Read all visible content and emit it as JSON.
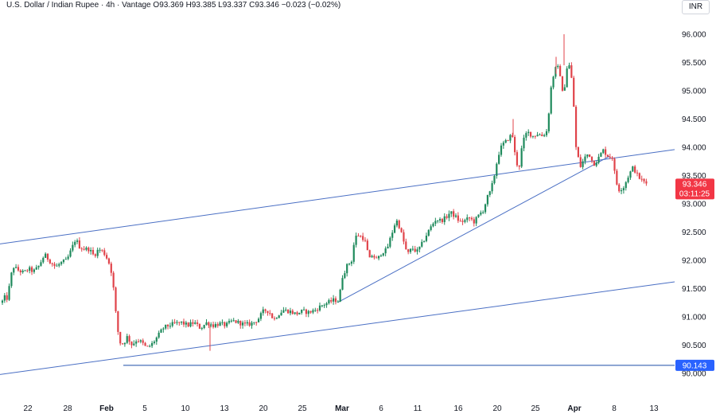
{
  "header": {
    "symbol": "U.S. Dollar / Indian Rupee",
    "interval": "4h",
    "source": "Vantage",
    "open_label": "O",
    "open": "93.369",
    "high_label": "H",
    "high": "93.385",
    "low_label": "L",
    "low": "93.337",
    "close_label": "C",
    "close": "93.346",
    "change": "−0.023 (−0.02%)",
    "separator": "·"
  },
  "currency_button": "INR",
  "colors": {
    "up": "#26a69a",
    "down": "#ef5350",
    "candle_body_up": "#1f8a5c",
    "candle_body_down": "#e0434a",
    "trendline": "#4a6fc4",
    "support_line": "#1c4ea8",
    "current_price_bg": "#f23645",
    "support_label_bg": "#2962ff",
    "text": "#131722"
  },
  "price_labels": {
    "current_price": "93.346",
    "countdown": "03:11:25",
    "support_price": "90.143"
  },
  "chart_data": {
    "type": "candlestick",
    "title": "U.S. Dollar / Indian Rupee · 4h · Vantage",
    "yaxis": {
      "ticks": [
        "96.000",
        "95.500",
        "95.000",
        "94.500",
        "94.000",
        "93.500",
        "93.000",
        "92.500",
        "92.000",
        "91.500",
        "91.000",
        "90.500",
        "90.000"
      ],
      "ylim": [
        89.95,
        96.3
      ]
    },
    "xaxis": {
      "ticks": [
        {
          "label": "22",
          "bold": false
        },
        {
          "label": "28",
          "bold": false
        },
        {
          "label": "Feb",
          "bold": true
        },
        {
          "label": "5",
          "bold": false
        },
        {
          "label": "10",
          "bold": false
        },
        {
          "label": "13",
          "bold": false
        },
        {
          "label": "20",
          "bold": false
        },
        {
          "label": "25",
          "bold": false
        },
        {
          "label": "Mar",
          "bold": true
        },
        {
          "label": "6",
          "bold": false
        },
        {
          "label": "11",
          "bold": false
        },
        {
          "label": "16",
          "bold": false
        },
        {
          "label": "20",
          "bold": false
        },
        {
          "label": "25",
          "bold": false
        },
        {
          "label": "Apr",
          "bold": true
        },
        {
          "label": "8",
          "bold": false
        },
        {
          "label": "13",
          "bold": false
        }
      ]
    },
    "path": [
      [
        0,
        91.25
      ],
      [
        2,
        91.3
      ],
      [
        4,
        91.25
      ],
      [
        6,
        91.35
      ],
      [
        8,
        91.28
      ],
      [
        12,
        91.55
      ],
      [
        16,
        91.9
      ],
      [
        22,
        91.83
      ],
      [
        30,
        91.78
      ],
      [
        36,
        91.85
      ],
      [
        42,
        91.8
      ],
      [
        48,
        91.88
      ],
      [
        56,
        92.1
      ],
      [
        62,
        92.0
      ],
      [
        70,
        91.88
      ],
      [
        76,
        91.95
      ],
      [
        84,
        92.0
      ],
      [
        90,
        92.2
      ],
      [
        95,
        92.38
      ],
      [
        100,
        92.24
      ],
      [
        106,
        92.2
      ],
      [
        112,
        92.2
      ],
      [
        118,
        92.08
      ],
      [
        124,
        92.2
      ],
      [
        130,
        92.15
      ],
      [
        136,
        92.0
      ],
      [
        141,
        91.75
      ],
      [
        146,
        91.0
      ],
      [
        150,
        90.55
      ],
      [
        155,
        90.52
      ],
      [
        160,
        90.65
      ],
      [
        166,
        90.5
      ],
      [
        172,
        90.6
      ],
      [
        178,
        90.55
      ],
      [
        184,
        90.45
      ],
      [
        190,
        90.5
      ],
      [
        198,
        90.65
      ],
      [
        205,
        90.8
      ],
      [
        212,
        90.85
      ],
      [
        220,
        90.88
      ],
      [
        228,
        90.9
      ],
      [
        236,
        90.85
      ],
      [
        244,
        90.9
      ],
      [
        252,
        90.8
      ],
      [
        260,
        90.9
      ],
      [
        268,
        90.85
      ],
      [
        276,
        90.88
      ],
      [
        284,
        90.85
      ],
      [
        292,
        90.93
      ],
      [
        300,
        90.9
      ],
      [
        308,
        90.86
      ],
      [
        316,
        90.88
      ],
      [
        324,
        90.95
      ],
      [
        332,
        91.12
      ],
      [
        338,
        91.1
      ],
      [
        344,
        90.95
      ],
      [
        350,
        91.05
      ],
      [
        356,
        91.12
      ],
      [
        364,
        91.1
      ],
      [
        372,
        91.05
      ],
      [
        380,
        91.1
      ],
      [
        388,
        91.08
      ],
      [
        396,
        91.12
      ],
      [
        404,
        91.2
      ],
      [
        412,
        91.25
      ],
      [
        420,
        91.3
      ],
      [
        426,
        91.28
      ],
      [
        430,
        91.7
      ],
      [
        436,
        91.9
      ],
      [
        442,
        92.0
      ],
      [
        446,
        92.4
      ],
      [
        450,
        92.45
      ],
      [
        456,
        92.4
      ],
      [
        460,
        92.3
      ],
      [
        464,
        92.0
      ],
      [
        468,
        92.1
      ],
      [
        474,
        92.0
      ],
      [
        480,
        92.15
      ],
      [
        486,
        92.18
      ],
      [
        492,
        92.45
      ],
      [
        498,
        92.72
      ],
      [
        502,
        92.6
      ],
      [
        508,
        92.3
      ],
      [
        512,
        92.1
      ],
      [
        518,
        92.22
      ],
      [
        524,
        92.15
      ],
      [
        530,
        92.28
      ],
      [
        536,
        92.45
      ],
      [
        542,
        92.6
      ],
      [
        548,
        92.73
      ],
      [
        554,
        92.7
      ],
      [
        560,
        92.75
      ],
      [
        566,
        92.85
      ],
      [
        572,
        92.78
      ],
      [
        578,
        92.68
      ],
      [
        584,
        92.7
      ],
      [
        590,
        92.75
      ],
      [
        596,
        92.68
      ],
      [
        602,
        92.8
      ],
      [
        608,
        92.9
      ],
      [
        612,
        93.1
      ],
      [
        616,
        93.2
      ],
      [
        620,
        93.4
      ],
      [
        624,
        93.7
      ],
      [
        628,
        93.95
      ],
      [
        632,
        94.05
      ],
      [
        636,
        94.1
      ],
      [
        640,
        94.18
      ],
      [
        644,
        94.22
      ],
      [
        648,
        93.8
      ],
      [
        652,
        93.6
      ],
      [
        656,
        94.0
      ],
      [
        660,
        94.22
      ],
      [
        664,
        94.26
      ],
      [
        670,
        94.2
      ],
      [
        676,
        94.24
      ],
      [
        682,
        94.2
      ],
      [
        688,
        94.3
      ],
      [
        692,
        95.0
      ],
      [
        696,
        95.3
      ],
      [
        700,
        95.45
      ],
      [
        704,
        95.3
      ],
      [
        708,
        94.85
      ],
      [
        712,
        95.4
      ],
      [
        716,
        95.45
      ],
      [
        720,
        95.05
      ],
      [
        722,
        94.5
      ],
      [
        724,
        94.0
      ],
      [
        727,
        93.8
      ],
      [
        730,
        93.65
      ],
      [
        734,
        93.8
      ],
      [
        740,
        93.9
      ],
      [
        746,
        93.7
      ],
      [
        752,
        93.8
      ],
      [
        758,
        93.95
      ],
      [
        764,
        93.85
      ],
      [
        770,
        93.82
      ],
      [
        774,
        93.4
      ],
      [
        778,
        93.25
      ],
      [
        784,
        93.3
      ],
      [
        790,
        93.5
      ],
      [
        796,
        93.65
      ],
      [
        802,
        93.48
      ],
      [
        808,
        93.4
      ],
      [
        814,
        93.35
      ]
    ],
    "annotations": {
      "trendlines": [
        {
          "name": "upper-channel",
          "from": {
            "x": 0,
            "y": 92.29
          },
          "to": {
            "x": 848,
            "y": 93.96
          }
        },
        {
          "name": "lower-channel",
          "from": {
            "x": 0,
            "y": 89.98
          },
          "to": {
            "x": 848,
            "y": 91.62
          }
        },
        {
          "name": "rally-support",
          "from": {
            "x": 425,
            "y": 91.26
          },
          "to": {
            "x": 766,
            "y": 93.84
          }
        }
      ],
      "horizontal_lines": [
        {
          "name": "support-90.143",
          "y": 90.143,
          "x_start": 155
        }
      ]
    }
  }
}
